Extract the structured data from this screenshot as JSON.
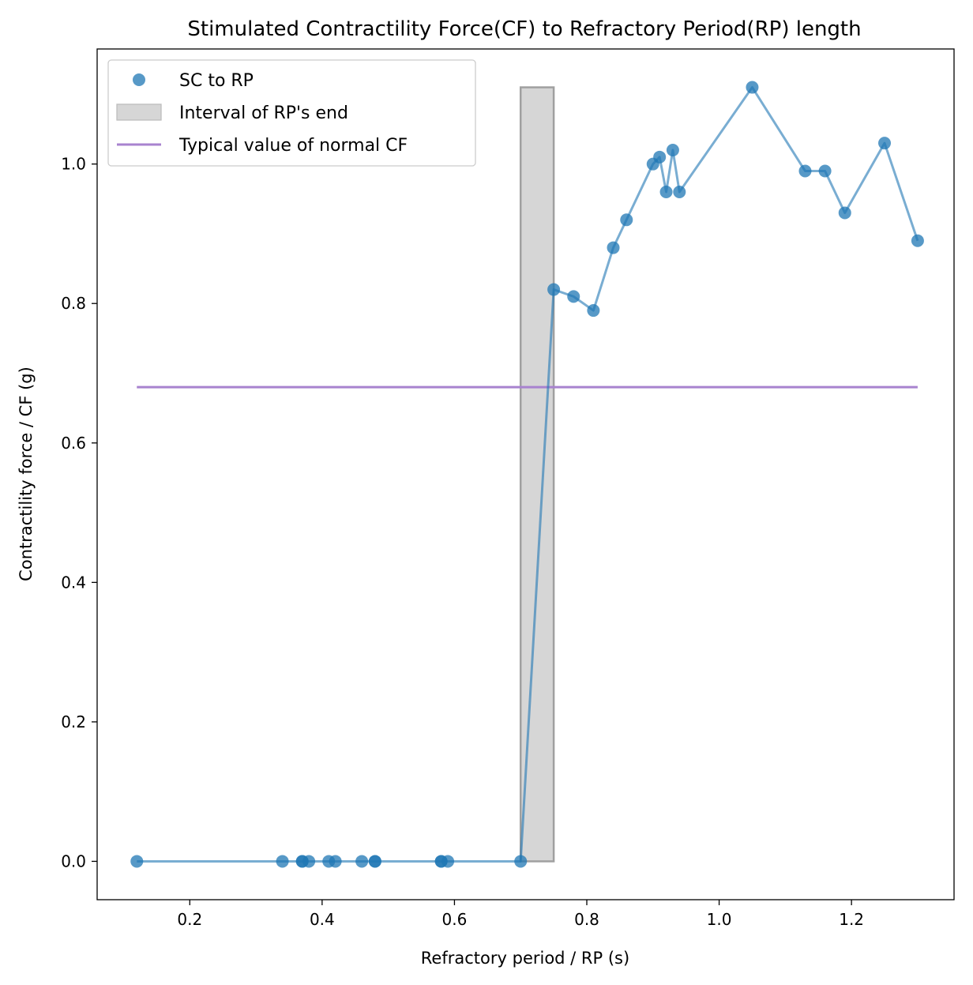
{
  "chart_data": {
    "type": "scatter",
    "title": "Stimulated Contractility Force(CF) to Refractory Period(RP) length",
    "xlabel": "Refractory period / RP (s)",
    "ylabel": "Contractility force / CF (g)",
    "xlim": [
      0.06,
      1.355
    ],
    "ylim": [
      -0.055,
      1.165
    ],
    "xticks": [
      0.2,
      0.4,
      0.6,
      0.8,
      1.0,
      1.2
    ],
    "xtick_labels": [
      "0.2",
      "0.4",
      "0.6",
      "0.8",
      "1.0",
      "1.2"
    ],
    "yticks": [
      0.0,
      0.2,
      0.4,
      0.6,
      0.8,
      1.0
    ],
    "ytick_labels": [
      "0.0",
      "0.2",
      "0.4",
      "0.6",
      "0.8",
      "1.0"
    ],
    "grid": false,
    "legend_position": "upper-left",
    "series": [
      {
        "name": "SC to RP",
        "kind": "scatter+line",
        "color": "#1f77b4",
        "x": [
          0.12,
          0.34,
          0.37,
          0.37,
          0.38,
          0.41,
          0.42,
          0.46,
          0.48,
          0.48,
          0.58,
          0.58,
          0.59,
          0.7,
          0.75,
          0.78,
          0.81,
          0.84,
          0.86,
          0.9,
          0.91,
          0.92,
          0.93,
          0.94,
          1.05,
          1.13,
          1.16,
          1.19,
          1.25,
          1.3
        ],
        "y": [
          0.0,
          0.0,
          0.0,
          0.0,
          0.0,
          0.0,
          0.0,
          0.0,
          0.0,
          0.0,
          0.0,
          0.0,
          0.0,
          0.0,
          0.82,
          0.81,
          0.79,
          0.88,
          0.92,
          1.0,
          1.01,
          0.96,
          1.02,
          0.96,
          1.11,
          0.99,
          0.99,
          0.93,
          1.03,
          0.89
        ]
      },
      {
        "name": "Interval of RP's end",
        "kind": "span",
        "color": "#d6d6d6",
        "edge_color": "#a0a0a0",
        "x_range": [
          0.7,
          0.75
        ],
        "y_range": [
          0.0,
          1.11
        ]
      },
      {
        "name": "Typical value of normal CF",
        "kind": "hline",
        "color": "#a883cf",
        "y": 0.68,
        "x_range": [
          0.12,
          1.3
        ]
      }
    ]
  }
}
